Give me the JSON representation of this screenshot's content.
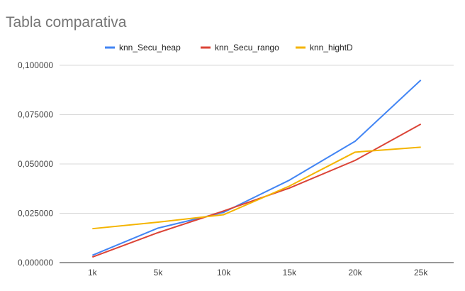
{
  "chart_data": {
    "type": "line",
    "title": "Tabla comparativa",
    "xlabel": "",
    "ylabel": "",
    "categories": [
      "1k",
      "5k",
      "10k",
      "15k",
      "20k",
      "25k"
    ],
    "ylim": [
      0,
      0.1
    ],
    "yticks": [
      "0,000000",
      "0,025000",
      "0,050000",
      "0,075000",
      "0,100000"
    ],
    "grid": true,
    "legend_position": "top",
    "series": [
      {
        "name": "knn_Secu_heap",
        "color": "#4285f4",
        "values": [
          0.0037,
          0.0175,
          0.0255,
          0.0418,
          0.0615,
          0.0925
        ]
      },
      {
        "name": "knn_Secu_rango",
        "color": "#db4437",
        "values": [
          0.0028,
          0.0152,
          0.0262,
          0.0378,
          0.0518,
          0.0702
        ]
      },
      {
        "name": "knn_hightD",
        "color": "#f4b400",
        "values": [
          0.0172,
          0.0205,
          0.0243,
          0.0388,
          0.056,
          0.0585
        ]
      }
    ]
  }
}
